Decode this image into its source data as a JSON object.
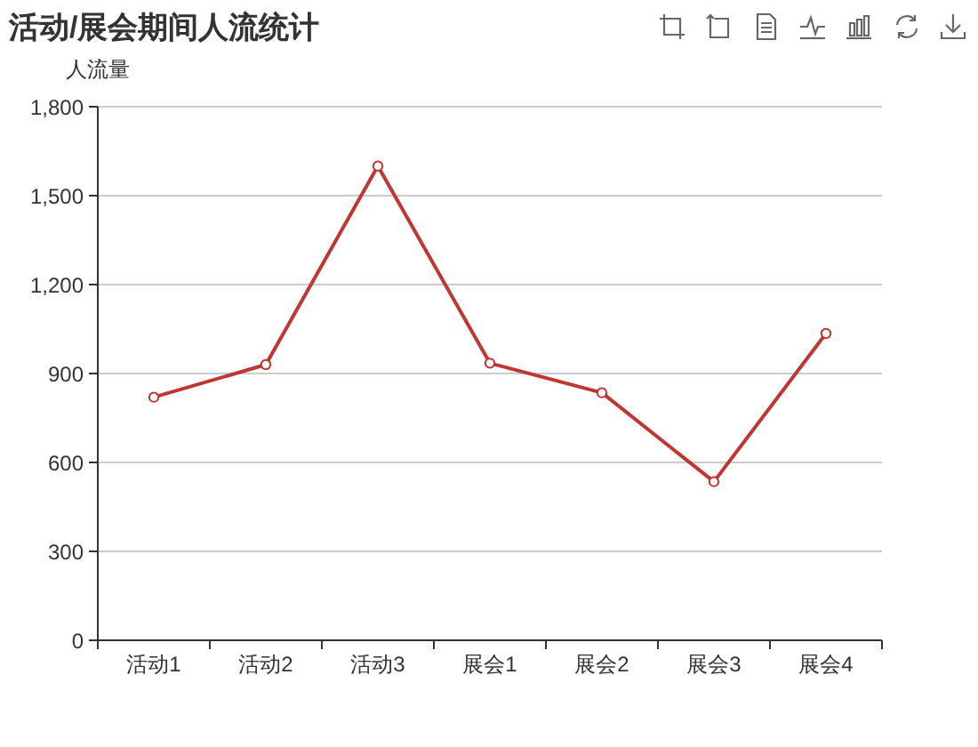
{
  "chart_data": {
    "type": "line",
    "title": "活动/展会期间人流统计",
    "ylabel": "人流量",
    "categories": [
      "活动1",
      "活动2",
      "活动3",
      "展会1",
      "展会2",
      "展会3",
      "展会4"
    ],
    "series": [
      {
        "color": "#c23531",
        "values": [
          820,
          930,
          1600,
          935,
          835,
          535,
          1035
        ]
      }
    ],
    "ylim": [
      0,
      1800
    ],
    "yticks": [
      0,
      300,
      600,
      900,
      {
        "value": 1200,
        "label": "1,200"
      },
      {
        "value": 1500,
        "label": "1,500"
      },
      {
        "value": 1800,
        "label": "1,800"
      }
    ],
    "grid": "y",
    "marker": "circle",
    "line_style": "solid"
  }
}
